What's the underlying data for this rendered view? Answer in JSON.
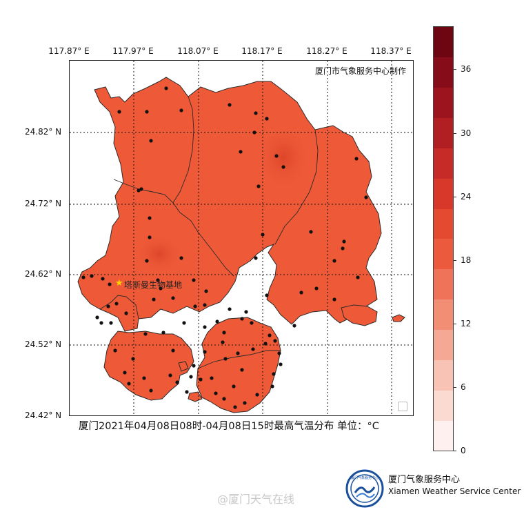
{
  "map": {
    "credit": "厦门市气象服务中心制作",
    "caption": "厦门2021年04月08日08时-04月08日15时最高气温分布  单位：°C",
    "site_label": "塔斯曼生物基地",
    "longitude_labels": [
      "117.87° E",
      "117.97° E",
      "118.07° E",
      "118.17° E",
      "118.27° E",
      "118.37° E"
    ],
    "latitude_labels": [
      "24.82° N",
      "24.72° N",
      "24.62° N",
      "24.52° N",
      "24.42° N"
    ]
  },
  "colorbar": {
    "ticks": [
      "36",
      "30",
      "24",
      "18",
      "12",
      "6",
      "0"
    ],
    "range": [
      0,
      40
    ],
    "unit": "°C",
    "colors": [
      "#fdf0ee",
      "#fbdad2",
      "#f8c2b4",
      "#f5a893",
      "#f28e74",
      "#ef7358",
      "#ec5a3e",
      "#e44a2f",
      "#d8382a",
      "#c72b27",
      "#b21f23",
      "#9c151e",
      "#850c18",
      "#6e0612"
    ]
  },
  "fill": {
    "base": "#ee5a38",
    "hot": "#e14a2c",
    "border": "#2a2a2a"
  },
  "logo_text": "厦门气象服务中心",
  "organization": {
    "name_cn": "厦门气象服务中心",
    "name_en": "Xiamen Weather Service Center"
  },
  "watermark": "@厦门天气在线"
}
